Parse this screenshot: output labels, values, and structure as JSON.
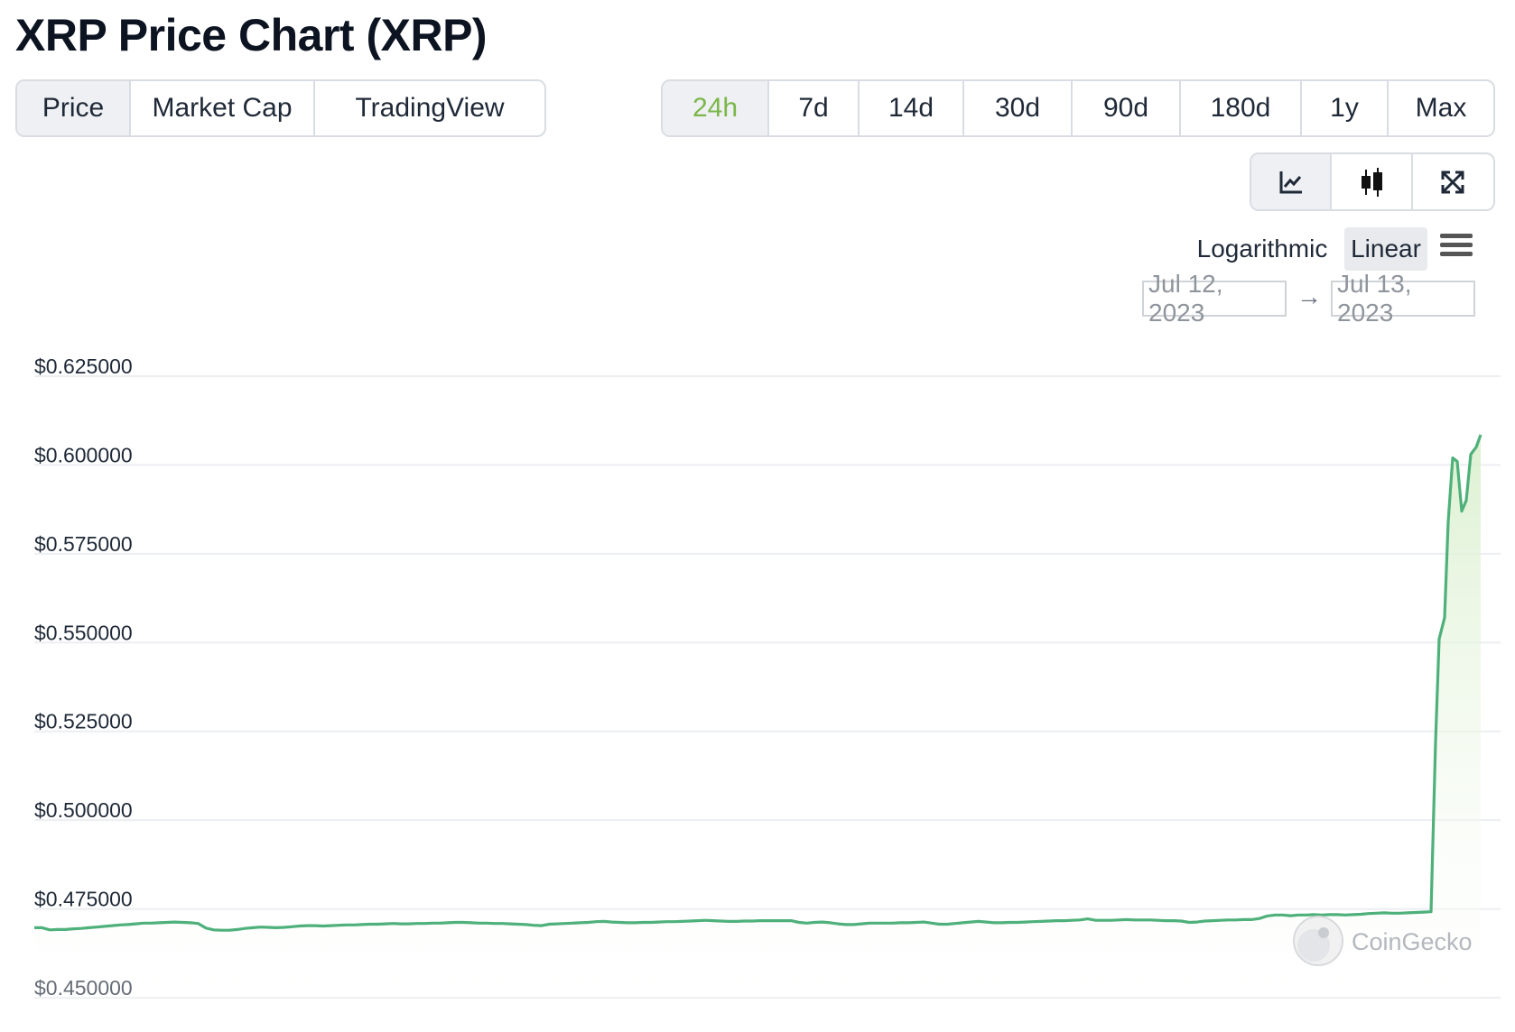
{
  "page": {
    "title": "XRP Price Chart (XRP)"
  },
  "tabs": [
    {
      "label": "Price",
      "active": true
    },
    {
      "label": "Market Cap",
      "active": false
    },
    {
      "label": "TradingView",
      "active": false
    }
  ],
  "ranges": [
    {
      "label": "24h",
      "active": true
    },
    {
      "label": "7d",
      "active": false
    },
    {
      "label": "14d",
      "active": false
    },
    {
      "label": "30d",
      "active": false
    },
    {
      "label": "90d",
      "active": false
    },
    {
      "label": "180d",
      "active": false
    },
    {
      "label": "1y",
      "active": false
    },
    {
      "label": "Max",
      "active": false
    }
  ],
  "chart_types": [
    {
      "icon": "line-chart-icon",
      "active": true
    },
    {
      "icon": "candlestick-chart-icon",
      "active": false
    },
    {
      "icon": "fullscreen-icon",
      "active": false
    }
  ],
  "scale": {
    "logarithmic_label": "Logarithmic",
    "linear_label": "Linear",
    "selected": "Linear",
    "menu_icon": "hamburger-menu-icon"
  },
  "date_range": {
    "from": "Jul 12, 2023",
    "to": "Jul 13, 2023",
    "arrow": "→"
  },
  "watermark": {
    "text": "CoinGecko",
    "icon": "coingecko-logo-icon"
  },
  "colors": {
    "line": "#4eb07a",
    "fill": "#e6f4e0",
    "active_range": "#7ab648"
  },
  "chart_data": {
    "type": "area",
    "title": "",
    "xlabel": "",
    "ylabel": "",
    "ylim": [
      0.45,
      0.625
    ],
    "yticks": [
      0.625,
      0.6,
      0.575,
      0.55,
      0.525,
      0.5,
      0.475,
      0.45
    ],
    "ytick_labels": [
      "$0.625000",
      "$0.600000",
      "$0.575000",
      "$0.550000",
      "$0.525000",
      "$0.500000",
      "$0.475000",
      "$0.450000"
    ],
    "grid": true,
    "x_start": "Jul 12, 2023",
    "x_end": "Jul 13, 2023",
    "series": [
      {
        "values": [
          0.4697,
          0.4697,
          0.4691,
          0.4692,
          0.4692,
          0.4694,
          0.4695,
          0.4697,
          0.4699,
          0.4701,
          0.4703,
          0.4705,
          0.4706,
          0.4708,
          0.471,
          0.471,
          0.4711,
          0.4712,
          0.4713,
          0.4712,
          0.4711,
          0.4709,
          0.4696,
          0.4691,
          0.469,
          0.469,
          0.4692,
          0.4695,
          0.4697,
          0.4699,
          0.4698,
          0.4697,
          0.4698,
          0.47,
          0.4702,
          0.4703,
          0.4703,
          0.4702,
          0.4703,
          0.4704,
          0.4705,
          0.4705,
          0.4706,
          0.4707,
          0.4707,
          0.4708,
          0.4709,
          0.4708,
          0.4708,
          0.4709,
          0.4709,
          0.471,
          0.471,
          0.4711,
          0.4712,
          0.4712,
          0.4711,
          0.471,
          0.471,
          0.4709,
          0.4709,
          0.4708,
          0.4707,
          0.4706,
          0.4704,
          0.4703,
          0.4707,
          0.4708,
          0.4709,
          0.471,
          0.4711,
          0.4712,
          0.4714,
          0.4715,
          0.4713,
          0.4712,
          0.4711,
          0.4711,
          0.4712,
          0.4712,
          0.4713,
          0.4714,
          0.4714,
          0.4715,
          0.4716,
          0.4717,
          0.4718,
          0.4717,
          0.4716,
          0.4715,
          0.4715,
          0.4716,
          0.4716,
          0.4717,
          0.4717,
          0.4717,
          0.4717,
          0.4717,
          0.4712,
          0.471,
          0.4712,
          0.4713,
          0.4711,
          0.4708,
          0.4706,
          0.4706,
          0.4708,
          0.471,
          0.471,
          0.471,
          0.471,
          0.4711,
          0.4711,
          0.4712,
          0.4713,
          0.471,
          0.4707,
          0.4707,
          0.4709,
          0.4711,
          0.4713,
          0.4715,
          0.4713,
          0.4711,
          0.4711,
          0.4712,
          0.4712,
          0.4713,
          0.4714,
          0.4715,
          0.4716,
          0.4717,
          0.4717,
          0.4718,
          0.4719,
          0.4722,
          0.4718,
          0.4718,
          0.4718,
          0.4719,
          0.472,
          0.4719,
          0.4719,
          0.4719,
          0.4718,
          0.4717,
          0.4717,
          0.4716,
          0.4712,
          0.4713,
          0.4716,
          0.4717,
          0.4718,
          0.4719,
          0.4719,
          0.472,
          0.472,
          0.4723,
          0.473,
          0.4733,
          0.4733,
          0.4731,
          0.4733,
          0.4733,
          0.4734,
          0.4733,
          0.4734,
          0.4734,
          0.4733,
          0.4734,
          0.4735,
          0.4737,
          0.4738,
          0.4739,
          0.4738,
          0.4738,
          0.4739,
          0.474,
          0.4741,
          0.4742
        ]
      }
    ],
    "spike_values": [
      0.4742,
      0.522,
      0.551,
      0.557,
      0.584,
      0.602,
      0.601,
      0.587,
      0.59,
      0.603,
      0.605,
      0.6085
    ]
  }
}
